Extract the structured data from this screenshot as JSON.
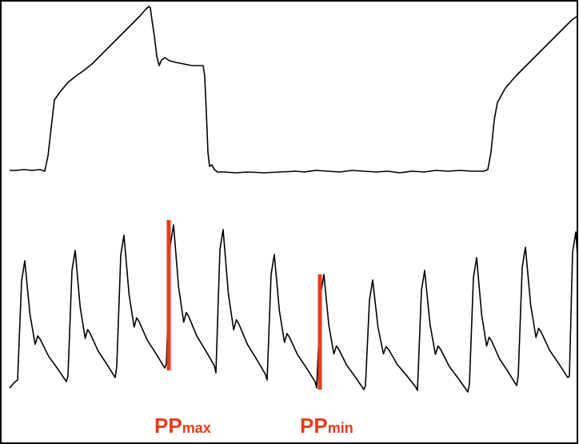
{
  "labels": {
    "pp_max_main": "PP",
    "pp_max_sub": "max",
    "pp_min_main": "PP",
    "pp_min_sub": "min"
  },
  "colors": {
    "trace": "#000000",
    "marker": "#e83a1c",
    "border": "#000000",
    "background": "#ffffff"
  }
}
